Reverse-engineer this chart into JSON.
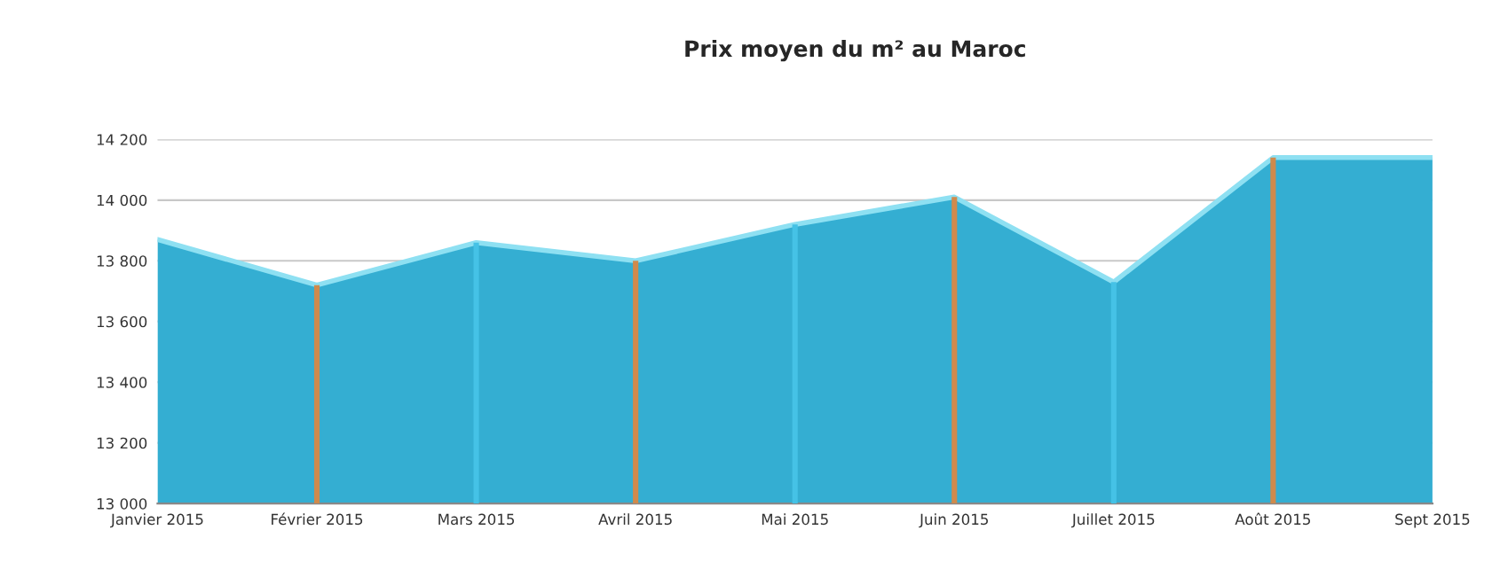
{
  "chart_data": {
    "type": "area",
    "title": "Prix moyen du m² au Maroc",
    "categories": [
      "Janvier 2015",
      "Février 2015",
      "Mars 2015",
      "Avril 2015",
      "Mai 2015",
      "Juin 2015",
      "Juillet 2015",
      "Août 2015",
      "Sept 2015"
    ],
    "series": [
      {
        "color": "#34aed2",
        "values": [
          13870,
          13720,
          13860,
          13800,
          13920,
          14010,
          13730,
          14140,
          14140
        ]
      }
    ],
    "ylim": [
      13000,
      14200
    ],
    "yticks": [
      {
        "value": 13000,
        "label": "13 000"
      },
      {
        "value": 13200,
        "label": "13 200"
      },
      {
        "value": 13400,
        "label": "13 400"
      },
      {
        "value": 13600,
        "label": "13 600"
      },
      {
        "value": 13800,
        "label": "13 800"
      },
      {
        "value": 14000,
        "label": "14 000"
      },
      {
        "value": 14200,
        "label": "14 200"
      }
    ],
    "grid": "y",
    "legend": false,
    "ref_lines": [
      {
        "axis": "x",
        "value": "Février 2015",
        "color": "#d08a4c"
      },
      {
        "axis": "x",
        "value": "Mars 2015",
        "color": "#45c2e6"
      },
      {
        "axis": "x",
        "value": "Avril 2015",
        "color": "#d08a4c"
      },
      {
        "axis": "x",
        "value": "Mai 2015",
        "color": "#45c2e6"
      },
      {
        "axis": "x",
        "value": "Juin 2015",
        "color": "#d08a4c"
      },
      {
        "axis": "x",
        "value": "Juillet 2015",
        "color": "#45c2e6"
      },
      {
        "axis": "x",
        "value": "Août 2015",
        "color": "#d08a4c"
      }
    ]
  }
}
